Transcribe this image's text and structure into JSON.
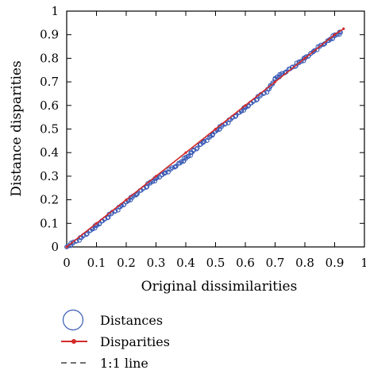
{
  "chart_data": {
    "type": "scatter",
    "xlabel": "Original dissimilarities",
    "ylabel": "Distance disparities",
    "xlim": [
      0,
      1
    ],
    "ylim": [
      0,
      1
    ],
    "x_ticks": [
      "0",
      "0.1",
      "0.2",
      "0.3",
      "0.4",
      "0.5",
      "0.6",
      "0.7",
      "0.8",
      "0.9",
      "1"
    ],
    "y_ticks": [
      "0",
      "0.1",
      "0.2",
      "0.3",
      "0.4",
      "0.5",
      "0.6",
      "0.7",
      "0.8",
      "0.9",
      "1"
    ],
    "grid": false,
    "legend_placement": "bottom-left",
    "series": [
      {
        "name": "Distances",
        "kind": "markers",
        "marker": "open-circle",
        "color": "#3a5bb5",
        "x": [
          0.0,
          0.02,
          0.05,
          0.08,
          0.1,
          0.12,
          0.15,
          0.18,
          0.2,
          0.22,
          0.25,
          0.28,
          0.3,
          0.32,
          0.35,
          0.38,
          0.4,
          0.42,
          0.45,
          0.48,
          0.5,
          0.52,
          0.55,
          0.58,
          0.6,
          0.62,
          0.65,
          0.68,
          0.7,
          0.72,
          0.75,
          0.78,
          0.8,
          0.82,
          0.85,
          0.88,
          0.9,
          0.92
        ],
        "y": [
          0.0,
          0.015,
          0.04,
          0.07,
          0.09,
          0.11,
          0.14,
          0.17,
          0.19,
          0.21,
          0.24,
          0.27,
          0.29,
          0.305,
          0.33,
          0.355,
          0.375,
          0.4,
          0.435,
          0.465,
          0.49,
          0.51,
          0.54,
          0.57,
          0.59,
          0.61,
          0.64,
          0.67,
          0.715,
          0.73,
          0.755,
          0.78,
          0.8,
          0.82,
          0.85,
          0.875,
          0.895,
          0.91
        ]
      },
      {
        "name": "Disparities",
        "kind": "line-markers",
        "color": "#d42a2a",
        "x": [
          0.0,
          0.1,
          0.2,
          0.3,
          0.4,
          0.5,
          0.6,
          0.7,
          0.8,
          0.9,
          0.93
        ],
        "y": [
          0.0,
          0.1,
          0.2,
          0.3,
          0.4,
          0.5,
          0.6,
          0.7,
          0.8,
          0.9,
          0.925
        ]
      },
      {
        "name": "1:1 line",
        "kind": "dashed-line",
        "color": "#444444",
        "x": [
          0,
          0.93
        ],
        "y": [
          0,
          0.93
        ]
      }
    ]
  }
}
